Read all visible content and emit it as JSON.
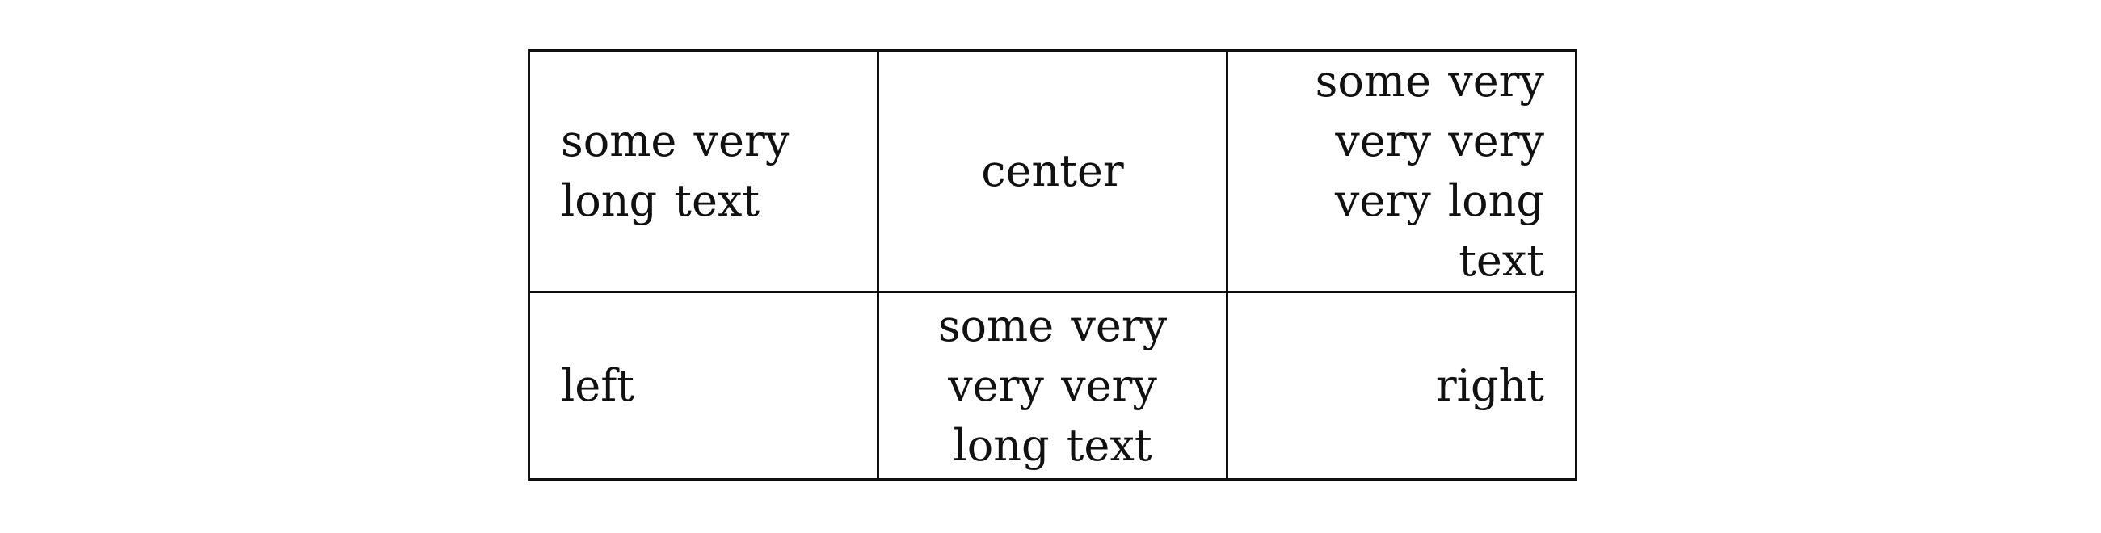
{
  "table": {
    "rows": [
      {
        "cells": [
          {
            "text": "some very long text",
            "align": "left"
          },
          {
            "text": "center",
            "align": "center"
          },
          {
            "text": "some very very very very long text",
            "align": "right"
          }
        ]
      },
      {
        "cells": [
          {
            "text": "left",
            "align": "left"
          },
          {
            "text": "some very very very long text",
            "align": "center"
          },
          {
            "text": "right",
            "align": "right"
          }
        ]
      }
    ]
  }
}
